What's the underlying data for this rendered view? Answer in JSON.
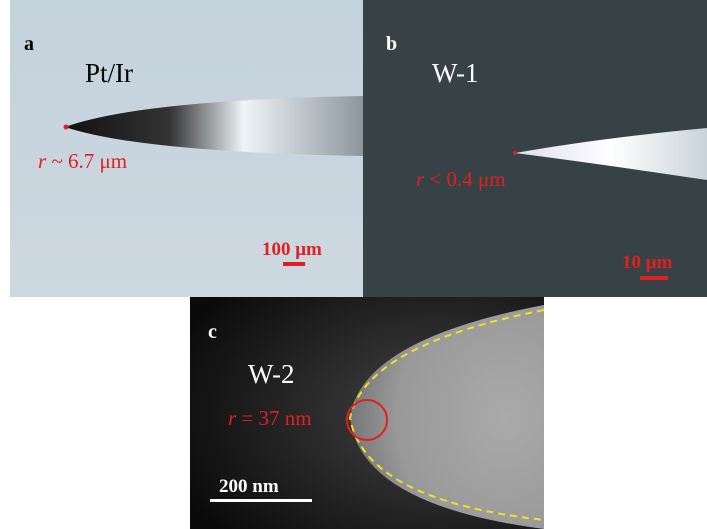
{
  "panels": [
    {
      "letter": "a",
      "tip": "Pt/Ir",
      "radius_symbol": "r",
      "radius_text": " ~ 6.7 μm",
      "scale": "100 μm"
    },
    {
      "letter": "b",
      "tip": "W-1",
      "radius_symbol": "r",
      "radius_text": " < 0.4 μm",
      "scale": "10 μm"
    },
    {
      "letter": "c",
      "tip": "W-2",
      "radius_symbol": "r",
      "radius_text": " = 37 nm",
      "scale": "200 nm"
    }
  ]
}
